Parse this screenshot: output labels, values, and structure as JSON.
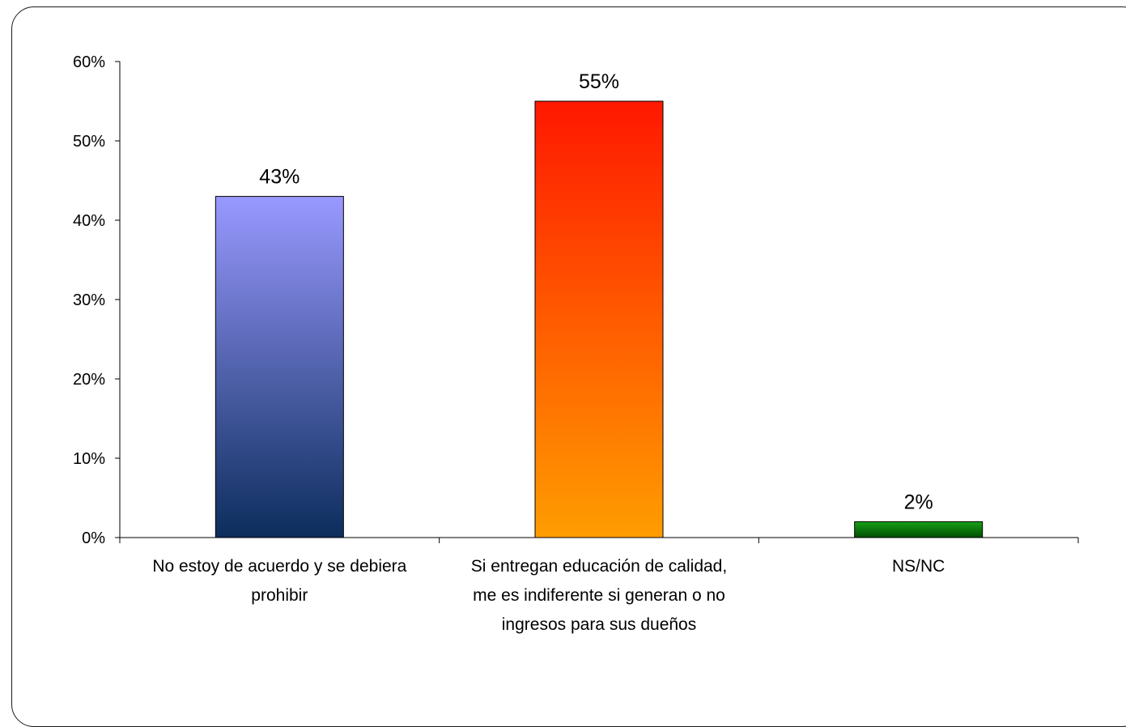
{
  "chart_data": {
    "type": "bar",
    "categories": [
      "No estoy de acuerdo y se debiera prohibir",
      "Si entregan educación de calidad, me es indiferente si generan o no ingresos para sus dueños",
      "NS/NC"
    ],
    "values": [
      43,
      55,
      2
    ],
    "value_labels": [
      "43%",
      "55%",
      "2%"
    ],
    "ylim": [
      0,
      60
    ],
    "yticks": [
      0,
      10,
      20,
      30,
      40,
      50,
      60
    ],
    "ytick_labels": [
      "0%",
      "10%",
      "20%",
      "30%",
      "40%",
      "50%",
      "60%"
    ],
    "grid": false,
    "legend": "none",
    "bar_gradients": [
      {
        "top": "#9999ff",
        "bottom": "#0c2d5c"
      },
      {
        "top": "#ff1800",
        "bottom": "#ff9d00"
      },
      {
        "top": "#18a018",
        "bottom": "#004d00"
      }
    ]
  }
}
